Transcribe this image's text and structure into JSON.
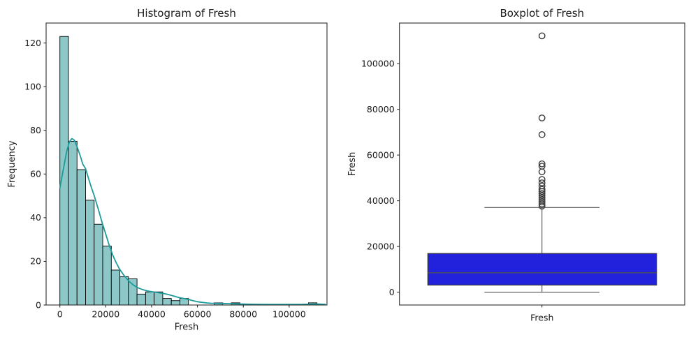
{
  "figure": {
    "background": "#ffffff"
  },
  "chart_data": [
    {
      "type": "histogram",
      "title": "Histogram of Fresh",
      "xlabel": "Fresh",
      "ylabel": "Frequency",
      "xlim": [
        -6000,
        116500
      ],
      "ylim": [
        0,
        129.15
      ],
      "xticks": [
        0,
        20000,
        40000,
        60000,
        80000,
        100000
      ],
      "yticks": [
        0,
        20,
        40,
        60,
        80,
        100,
        120
      ],
      "bin_start": 3,
      "bin_width": 3738.3,
      "counts": [
        123,
        75,
        62,
        48,
        37,
        27,
        16,
        13,
        12,
        5,
        6,
        6,
        3,
        2,
        3,
        0,
        0,
        0,
        1,
        0,
        1,
        0,
        0,
        0,
        0,
        0,
        0,
        0,
        0,
        1
      ],
      "kde": {
        "color": "#1d9b9b",
        "points": [
          [
            3,
            53.5
          ],
          [
            1500,
            62
          ],
          [
            3000,
            70.5
          ],
          [
            4200,
            74.8
          ],
          [
            5200,
            76.2
          ],
          [
            6300,
            75.5
          ],
          [
            7500,
            72.5
          ],
          [
            9000,
            68
          ],
          [
            10000,
            64.5
          ],
          [
            11200,
            62.5
          ],
          [
            12500,
            58
          ],
          [
            13700,
            54
          ],
          [
            15000,
            50
          ],
          [
            16000,
            46.5
          ],
          [
            17000,
            43
          ],
          [
            18500,
            37.5
          ],
          [
            20000,
            32.5
          ],
          [
            21500,
            27.5
          ],
          [
            23000,
            23
          ],
          [
            24500,
            19.5
          ],
          [
            26000,
            16.5
          ],
          [
            28000,
            13.5
          ],
          [
            30000,
            11
          ],
          [
            32000,
            9.2
          ],
          [
            34000,
            7.9
          ],
          [
            36000,
            7.1
          ],
          [
            38000,
            6.5
          ],
          [
            40000,
            6.1
          ],
          [
            42000,
            5.8
          ],
          [
            44000,
            5.5
          ],
          [
            46000,
            5.1
          ],
          [
            48000,
            4.6
          ],
          [
            50000,
            4.0
          ],
          [
            52000,
            3.4
          ],
          [
            54000,
            3.0
          ],
          [
            56000,
            2.6
          ],
          [
            58000,
            2.0
          ],
          [
            60000,
            1.5
          ],
          [
            62000,
            1.2
          ],
          [
            64000,
            0.95
          ],
          [
            66000,
            0.8
          ],
          [
            68500,
            0.75
          ],
          [
            71000,
            0.7
          ],
          [
            74000,
            0.62
          ],
          [
            77000,
            0.52
          ],
          [
            80000,
            0.42
          ],
          [
            85000,
            0.32
          ],
          [
            90000,
            0.27
          ],
          [
            95000,
            0.25
          ],
          [
            100000,
            0.26
          ],
          [
            105000,
            0.3
          ],
          [
            110000,
            0.38
          ],
          [
            113000,
            0.42
          ],
          [
            115800,
            0.3
          ]
        ]
      },
      "colors": {
        "bar_fill": "#8ec7c7",
        "bar_edge": "#000000"
      }
    },
    {
      "type": "boxplot",
      "title": "Boxplot of Fresh",
      "ylabel": "Fresh",
      "category": "Fresh",
      "ylim": [
        -5604,
        117760
      ],
      "yticks": [
        0,
        20000,
        40000,
        60000,
        80000,
        100000
      ],
      "stats": {
        "q1": 3128,
        "median": 8504,
        "q3": 16934,
        "whisker_low": 3,
        "whisker_high": 37036
      },
      "outliers": [
        112151,
        76237,
        68951,
        56159,
        55110,
        52667,
        49319,
        47844,
        46458,
        45022,
        44096,
        43170,
        42244,
        41318,
        40392,
        39466,
        38588,
        37663
      ],
      "colors": {
        "box_fill": "#2222dd",
        "box_edge": "#3c3c3c",
        "median": "#50505a",
        "whisker": "#555555",
        "flier": "#3c3c3c"
      }
    }
  ]
}
